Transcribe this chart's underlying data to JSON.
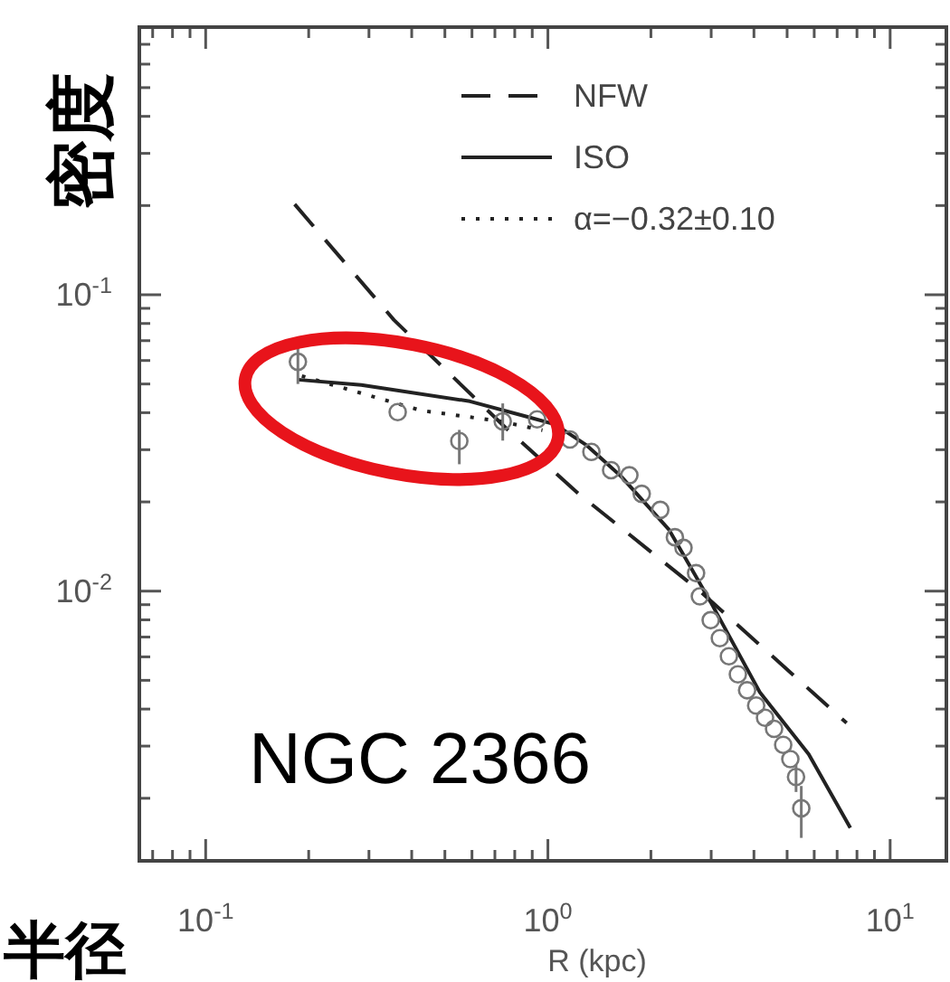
{
  "chart_data": {
    "type": "line",
    "xlabel": "R (kpc)",
    "ylabel": "密度",
    "annotations": [
      "NGC 2366",
      "半径"
    ],
    "log": "xy",
    "xlim": [
      0.064,
      14.6
    ],
    "ylim": [
      0.00123,
      0.8
    ],
    "xticks": [
      {
        "value": 0.07,
        "label": null
      },
      {
        "value": 0.08,
        "label": null
      },
      {
        "value": 0.09,
        "label": null
      },
      {
        "value": 0.1,
        "label": "10$^{-1}$"
      },
      {
        "value": 0.2,
        "label": null
      },
      {
        "value": 0.3,
        "label": null
      },
      {
        "value": 0.4,
        "label": null
      },
      {
        "value": 0.5,
        "label": null
      },
      {
        "value": 0.6,
        "label": null
      },
      {
        "value": 0.7,
        "label": null
      },
      {
        "value": 0.8,
        "label": null
      },
      {
        "value": 0.9,
        "label": null
      },
      {
        "value": 1,
        "label": "10$^{0}$"
      },
      {
        "value": 2,
        "label": null
      },
      {
        "value": 3,
        "label": null
      },
      {
        "value": 4,
        "label": null
      },
      {
        "value": 5,
        "label": null
      },
      {
        "value": 6,
        "label": null
      },
      {
        "value": 7,
        "label": null
      },
      {
        "value": 8,
        "label": null
      },
      {
        "value": 9,
        "label": null
      },
      {
        "value": 10,
        "label": "10$^{1}$"
      }
    ],
    "yticks": [
      {
        "value": 0.002,
        "label": null
      },
      {
        "value": 0.003,
        "label": null
      },
      {
        "value": 0.004,
        "label": null
      },
      {
        "value": 0.005,
        "label": null
      },
      {
        "value": 0.006,
        "label": null
      },
      {
        "value": 0.007,
        "label": null
      },
      {
        "value": 0.008,
        "label": null
      },
      {
        "value": 0.009,
        "label": null
      },
      {
        "value": 0.01,
        "label": "10$^{-2}$"
      },
      {
        "value": 0.02,
        "label": null
      },
      {
        "value": 0.03,
        "label": null
      },
      {
        "value": 0.04,
        "label": null
      },
      {
        "value": 0.05,
        "label": null
      },
      {
        "value": 0.06,
        "label": null
      },
      {
        "value": 0.07,
        "label": null
      },
      {
        "value": 0.08,
        "label": null
      },
      {
        "value": 0.09,
        "label": null
      },
      {
        "value": 0.1,
        "label": "10$^{-1}$"
      },
      {
        "value": 0.2,
        "label": null
      },
      {
        "value": 0.3,
        "label": null
      },
      {
        "value": 0.4,
        "label": null
      },
      {
        "value": 0.5,
        "label": null
      },
      {
        "value": 0.6,
        "label": null
      },
      {
        "value": 0.7,
        "label": null
      }
    ],
    "legend": "top right",
    "series": [
      {
        "name": "NFW",
        "line_style": "dashed",
        "color": "#222222",
        "x": [
          0.182,
          0.355,
          0.756,
          1.23,
          2.78,
          7.46
        ],
        "values": [
          0.202,
          0.0822,
          0.0354,
          0.0213,
          0.01,
          0.00359
        ]
      },
      {
        "name": "ISO",
        "line_style": "solid",
        "color": "#222222",
        "x": [
          0.186,
          0.285,
          0.592,
          0.853,
          1.05,
          1.3,
          1.63,
          2.26,
          2.99,
          4.16,
          5.78,
          7.65
        ],
        "values": [
          0.0517,
          0.0496,
          0.0437,
          0.039,
          0.0365,
          0.031,
          0.0245,
          0.0161,
          0.00918,
          0.00456,
          0.00282,
          0.00159
        ]
      },
      {
        "name": "α=−0.32±0.10",
        "line_style": "dotted",
        "color": "#222222",
        "x": [
          0.191,
          0.426,
          0.729,
          0.964
        ],
        "values": [
          0.0532,
          0.0407,
          0.0374,
          0.0349
        ]
      },
      {
        "type": "scatter",
        "marker": "circle",
        "color": "#777777",
        "x": [
          0.186,
          0.364,
          0.551,
          0.738,
          0.93,
          1.16,
          1.34,
          1.53,
          1.73,
          1.88,
          2.13,
          2.35,
          2.49,
          2.71,
          2.78,
          2.99,
          3.18,
          3.38,
          3.59,
          3.82,
          4.06,
          4.31,
          4.58,
          4.87,
          5.11,
          5.31,
          5.5
        ],
        "values": [
          0.0594,
          0.0402,
          0.0321,
          0.0374,
          0.038,
          0.0325,
          0.0295,
          0.0256,
          0.0246,
          0.0213,
          0.0188,
          0.0152,
          0.014,
          0.0115,
          0.0096,
          0.00798,
          0.00694,
          0.00603,
          0.00524,
          0.00463,
          0.00411,
          0.00374,
          0.00343,
          0.00303,
          0.00271,
          0.00236,
          0.00185
        ],
        "errors": [
          [
            0.05,
            0.0714
          ],
          null,
          [
            0.0268,
            0.035
          ],
          [
            0.0322,
            0.043
          ],
          null,
          null,
          null,
          null,
          null,
          null,
          null,
          null,
          null,
          null,
          null,
          null,
          null,
          null,
          null,
          null,
          null,
          null,
          null,
          null,
          null,
          [
            0.0021,
            0.0026
          ],
          [
            0.00147,
            0.0022
          ]
        ]
      }
    ]
  }
}
